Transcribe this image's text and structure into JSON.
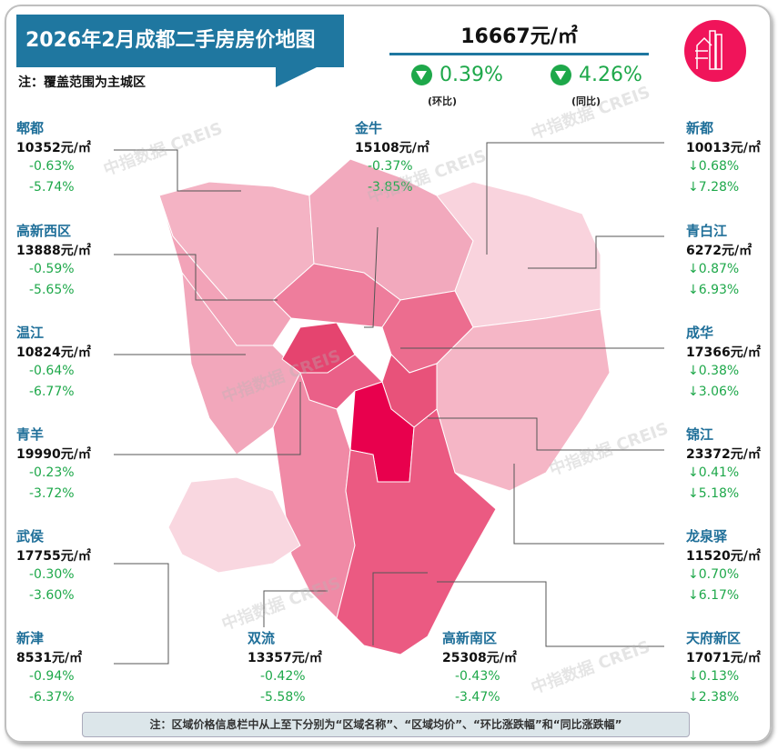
{
  "title": "2026年2月成都二手房房价地图",
  "note": "注：覆盖范围为主城区",
  "summary": {
    "avg_price": "16667元/㎡",
    "mom": "0.39%",
    "mom_label": "(环比)",
    "yoy": "4.26%",
    "yoy_label": "(同比)",
    "direction": "down"
  },
  "watermark": "中指数据 CREIS",
  "colors": {
    "title_bg": "#1f77a0",
    "name": "#1f6f99",
    "change": "#1ea84a",
    "logo": "#f0145a"
  },
  "districts": [
    {
      "name": "郫都",
      "price": "10352元/㎡",
      "mom": "-0.63%",
      "yoy": "-5.74%"
    },
    {
      "name": "高新西区",
      "price": "13888元/㎡",
      "mom": "-0.59%",
      "yoy": "-5.65%"
    },
    {
      "name": "温江",
      "price": "10824元/㎡",
      "mom": "-0.64%",
      "yoy": "-6.77%"
    },
    {
      "name": "青羊",
      "price": "19990元/㎡",
      "mom": "-0.23%",
      "yoy": "-3.72%"
    },
    {
      "name": "武侯",
      "price": "17755元/㎡",
      "mom": "-0.30%",
      "yoy": "-3.60%"
    },
    {
      "name": "新津",
      "price": "8531元/㎡",
      "mom": "-0.94%",
      "yoy": "-6.37%"
    },
    {
      "name": "金牛",
      "price": "15108元/㎡",
      "mom": "-0.37%",
      "yoy": "-3.85%"
    },
    {
      "name": "双流",
      "price": "13357元/㎡",
      "mom": "-0.42%",
      "yoy": "-5.58%"
    },
    {
      "name": "高新南区",
      "price": "25308元/㎡",
      "mom": "-0.43%",
      "yoy": "-3.47%"
    },
    {
      "name": "新都",
      "price": "10013元/㎡",
      "mom": "↓0.68%",
      "yoy": "↓7.28%"
    },
    {
      "name": "青白江",
      "price": "6272元/㎡",
      "mom": "↓0.87%",
      "yoy": "↓6.93%"
    },
    {
      "name": "成华",
      "price": "17366元/㎡",
      "mom": "↓0.38%",
      "yoy": "↓3.06%"
    },
    {
      "name": "锦江",
      "price": "23372元/㎡",
      "mom": "↓0.41%",
      "yoy": "↓5.18%"
    },
    {
      "name": "龙泉驿",
      "price": "11520元/㎡",
      "mom": "↓0.70%",
      "yoy": "↓6.17%"
    },
    {
      "name": "天府新区",
      "price": "17071元/㎡",
      "mom": "↓0.13%",
      "yoy": "↓2.38%"
    }
  ],
  "footnote": "注：区域价格信息栏中从上至下分别为“区域名称”、“区域均价”、“环比涨跌幅”和“同比涨跌幅”"
}
